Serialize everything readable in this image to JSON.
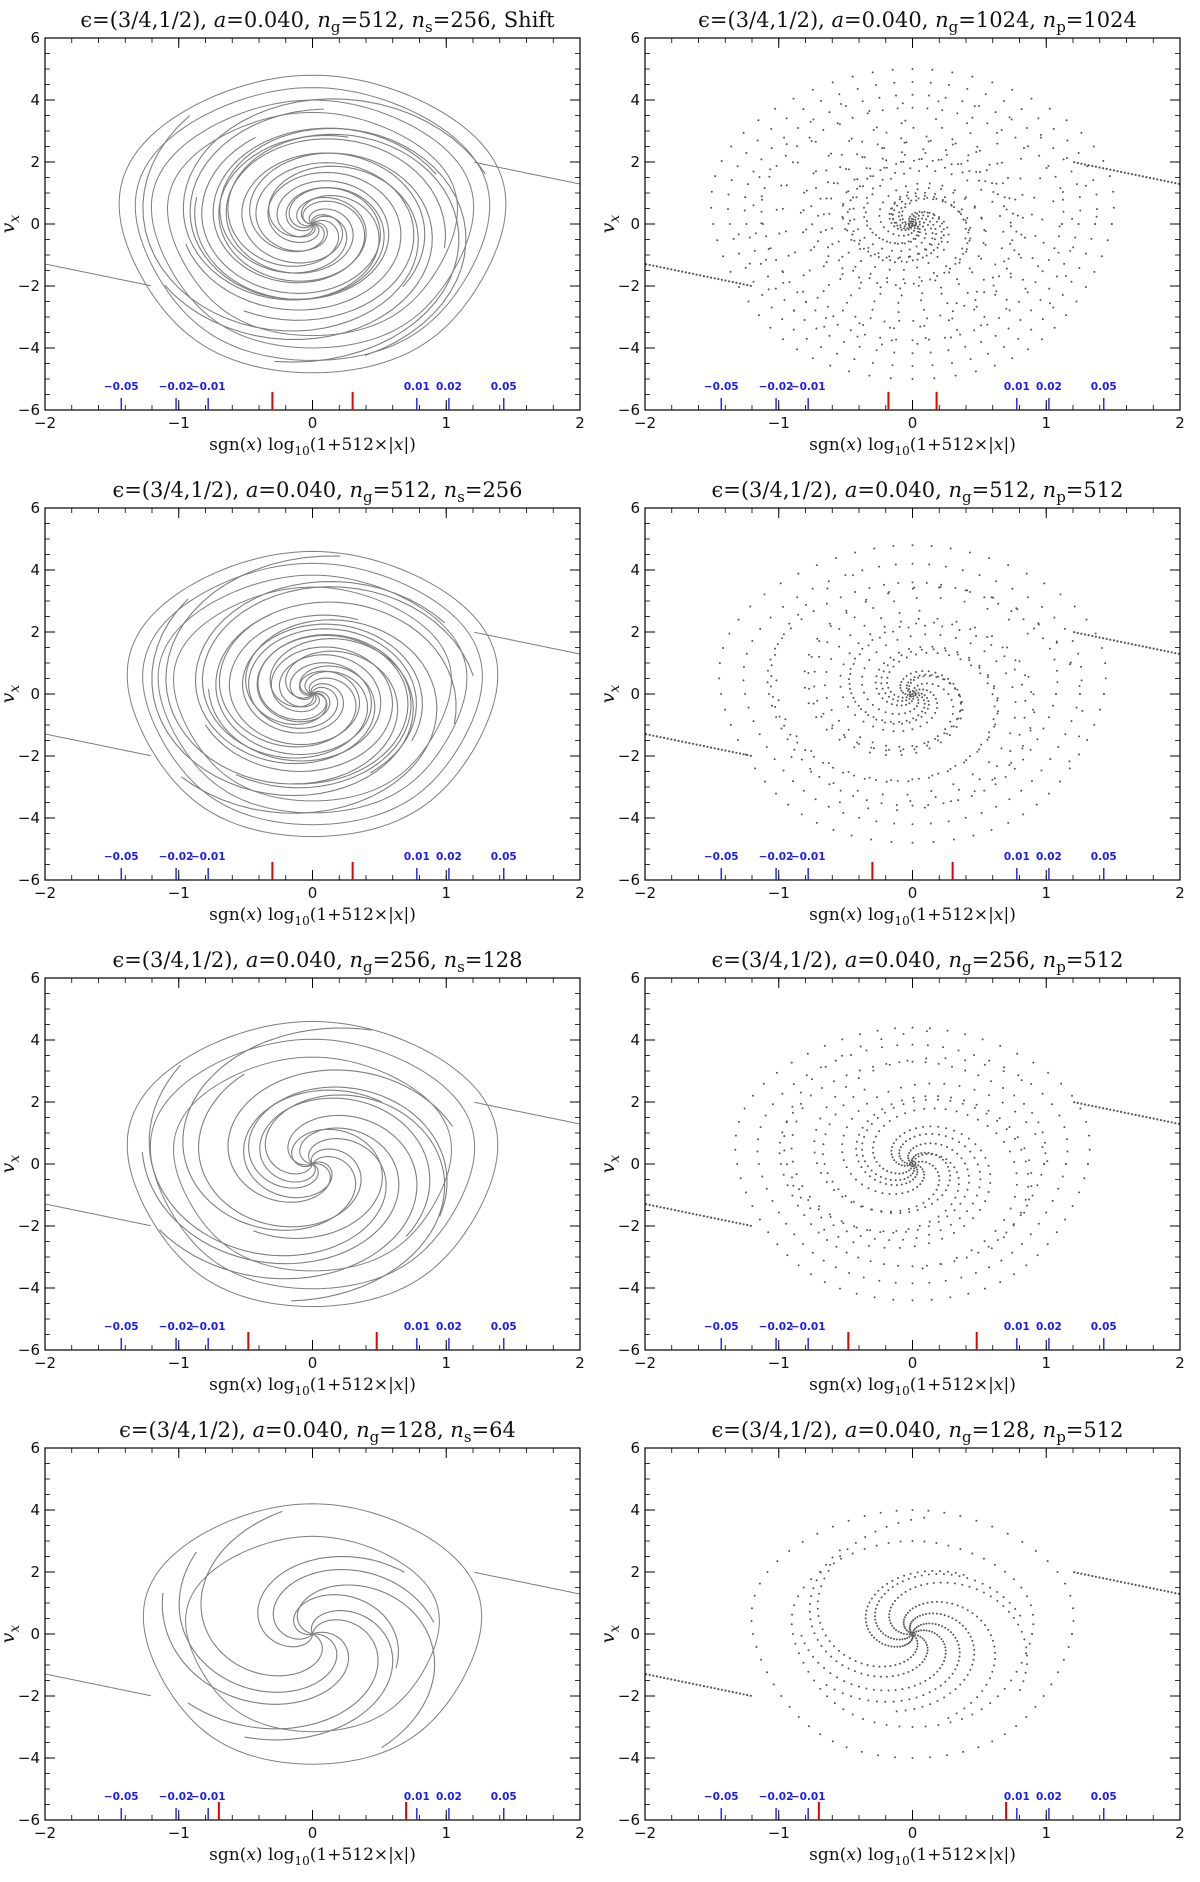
{
  "chart_data": [
    {
      "type": "line",
      "title": "ϵ=(3/4,1/2), a=0.040, n_g=512, n_s=256, Shift",
      "title_parts": {
        "prefix": "ϵ=(3/4,1/2), ",
        "a": "a",
        "a_val": "=0.040, ",
        "n": "n",
        "sub1": "g",
        "val1": "=512, ",
        "n2": "n",
        "sub2": "s",
        "val2": "=256, Shift"
      },
      "xlabel": "sgn(x) log10(1+512×|x|)",
      "ylabel": "v_x",
      "xlim": [
        -2,
        2
      ],
      "ylim": [
        -6,
        6
      ],
      "x_ticks": [
        "−2",
        "−1",
        "0",
        "1",
        "2"
      ],
      "y_ticks": [
        "−6",
        "−4",
        "−2",
        "0",
        "2",
        "4",
        "6"
      ],
      "marker_labels": [
        "−0.05",
        "−0.02",
        "−0.01",
        "0.01",
        "0.02",
        "0.05"
      ],
      "red_markers": [
        -0.3,
        0.3
      ],
      "style": "lines",
      "winding": 3.2,
      "density": 1.0,
      "rmax": 4.8
    },
    {
      "type": "scatter",
      "title": "ϵ=(3/4,1/2), a=0.040, n_g=1024, n_p=1024",
      "title_parts": {
        "prefix": "ϵ=(3/4,1/2), ",
        "a": "a",
        "a_val": "=0.040, ",
        "n": "n",
        "sub1": "g",
        "val1": "=1024, ",
        "n2": "n",
        "sub2": "p",
        "val2": "=1024"
      },
      "xlabel": "sgn(x) log10(1+512×|x|)",
      "ylabel": "v_x",
      "xlim": [
        -2,
        2
      ],
      "ylim": [
        -6,
        6
      ],
      "x_ticks": [
        "−2",
        "−1",
        "0",
        "1",
        "2"
      ],
      "y_ticks": [
        "−6",
        "−4",
        "−2",
        "0",
        "2",
        "4",
        "6"
      ],
      "marker_labels": [
        "−0.05",
        "−0.02",
        "−0.01",
        "0.01",
        "0.02",
        "0.05"
      ],
      "red_markers": [
        -0.18,
        0.18
      ],
      "style": "points",
      "winding": 3.6,
      "density": 1.0,
      "rmax": 5.0
    },
    {
      "type": "line",
      "title": "ϵ=(3/4,1/2), a=0.040, n_g=512, n_s=256",
      "title_parts": {
        "prefix": "ϵ=(3/4,1/2), ",
        "a": "a",
        "a_val": "=0.040, ",
        "n": "n",
        "sub1": "g",
        "val1": "=512, ",
        "n2": "n",
        "sub2": "s",
        "val2": "=256"
      },
      "xlabel": "sgn(x) log10(1+512×|x|)",
      "ylabel": "v_x",
      "xlim": [
        -2,
        2
      ],
      "ylim": [
        -6,
        6
      ],
      "x_ticks": [
        "−2",
        "−1",
        "0",
        "1",
        "2"
      ],
      "y_ticks": [
        "−6",
        "−4",
        "−2",
        "0",
        "2",
        "4",
        "6"
      ],
      "marker_labels": [
        "−0.05",
        "−0.02",
        "−0.01",
        "0.01",
        "0.02",
        "0.05"
      ],
      "red_markers": [
        -0.3,
        0.3
      ],
      "style": "lines",
      "winding": 3.2,
      "density": 1.0,
      "rmax": 4.6
    },
    {
      "type": "scatter",
      "title": "ϵ=(3/4,1/2), a=0.040, n_g=512, n_p=512",
      "title_parts": {
        "prefix": "ϵ=(3/4,1/2), ",
        "a": "a",
        "a_val": "=0.040, ",
        "n": "n",
        "sub1": "g",
        "val1": "=512, ",
        "n2": "n",
        "sub2": "p",
        "val2": "=512"
      },
      "xlabel": "sgn(x) log10(1+512×|x|)",
      "ylabel": "v_x",
      "xlim": [
        -2,
        2
      ],
      "ylim": [
        -6,
        6
      ],
      "x_ticks": [
        "−2",
        "−1",
        "0",
        "1",
        "2"
      ],
      "y_ticks": [
        "−6",
        "−4",
        "−2",
        "0",
        "2",
        "4",
        "6"
      ],
      "marker_labels": [
        "−0.05",
        "−0.02",
        "−0.01",
        "0.01",
        "0.02",
        "0.05"
      ],
      "red_markers": [
        -0.3,
        0.3
      ],
      "style": "points",
      "winding": 3.0,
      "density": 0.7,
      "rmax": 4.8
    },
    {
      "type": "line",
      "title": "ϵ=(3/4,1/2), a=0.040, n_g=256, n_s=128",
      "title_parts": {
        "prefix": "ϵ=(3/4,1/2), ",
        "a": "a",
        "a_val": "=0.040, ",
        "n": "n",
        "sub1": "g",
        "val1": "=256, ",
        "n2": "n",
        "sub2": "s",
        "val2": "=128"
      },
      "xlabel": "sgn(x) log10(1+512×|x|)",
      "ylabel": "v_x",
      "xlim": [
        -2,
        2
      ],
      "ylim": [
        -6,
        6
      ],
      "x_ticks": [
        "−2",
        "−1",
        "0",
        "1",
        "2"
      ],
      "y_ticks": [
        "−6",
        "−4",
        "−2",
        "0",
        "2",
        "4",
        "6"
      ],
      "marker_labels": [
        "−0.05",
        "−0.02",
        "−0.01",
        "0.01",
        "0.02",
        "0.05"
      ],
      "red_markers": [
        -0.48,
        0.48
      ],
      "style": "lines",
      "winding": 2.2,
      "density": 0.7,
      "rmax": 4.6
    },
    {
      "type": "scatter",
      "title": "ϵ=(3/4,1/2), a=0.040, n_g=256, n_p=512",
      "title_parts": {
        "prefix": "ϵ=(3/4,1/2), ",
        "a": "a",
        "a_val": "=0.040, ",
        "n": "n",
        "sub1": "g",
        "val1": "=256, ",
        "n2": "n",
        "sub2": "p",
        "val2": "=512"
      },
      "xlabel": "sgn(x) log10(1+512×|x|)",
      "ylabel": "v_x",
      "xlim": [
        -2,
        2
      ],
      "ylim": [
        -6,
        6
      ],
      "x_ticks": [
        "−2",
        "−1",
        "0",
        "1",
        "2"
      ],
      "y_ticks": [
        "−6",
        "−4",
        "−2",
        "0",
        "2",
        "4",
        "6"
      ],
      "marker_labels": [
        "−0.05",
        "−0.02",
        "−0.01",
        "0.01",
        "0.02",
        "0.05"
      ],
      "red_markers": [
        -0.48,
        0.48
      ],
      "style": "points",
      "winding": 2.2,
      "density": 0.6,
      "rmax": 4.4
    },
    {
      "type": "line",
      "title": "ϵ=(3/4,1/2), a=0.040, n_g=128, n_s=64",
      "title_parts": {
        "prefix": "ϵ=(3/4,1/2), ",
        "a": "a",
        "a_val": "=0.040, ",
        "n": "n",
        "sub1": "g",
        "val1": "=128, ",
        "n2": "n",
        "sub2": "s",
        "val2": "=64"
      },
      "xlabel": "sgn(x) log10(1+512×|x|)",
      "ylabel": "v_x",
      "xlim": [
        -2,
        2
      ],
      "ylim": [
        -6,
        6
      ],
      "x_ticks": [
        "−2",
        "−1",
        "0",
        "1",
        "2"
      ],
      "y_ticks": [
        "−6",
        "−4",
        "−2",
        "0",
        "2",
        "4",
        "6"
      ],
      "marker_labels": [
        "−0.05",
        "−0.02",
        "−0.01",
        "0.01",
        "0.02",
        "0.05"
      ],
      "red_markers": [
        -0.7,
        0.7
      ],
      "style": "lines",
      "winding": 1.4,
      "density": 0.45,
      "rmax": 4.2
    },
    {
      "type": "scatter",
      "title": "ϵ=(3/4,1/2), a=0.040, n_g=128, n_p=512",
      "title_parts": {
        "prefix": "ϵ=(3/4,1/2), ",
        "a": "a",
        "a_val": "=0.040, ",
        "n": "n",
        "sub1": "g",
        "val1": "=128, ",
        "n2": "n",
        "sub2": "p",
        "val2": "=512"
      },
      "xlabel": "sgn(x) log10(1+512×|x|)",
      "ylabel": "v_x",
      "xlim": [
        -2,
        2
      ],
      "ylim": [
        -6,
        6
      ],
      "x_ticks": [
        "−2",
        "−1",
        "0",
        "1",
        "2"
      ],
      "y_ticks": [
        "−6",
        "−4",
        "−2",
        "0",
        "2",
        "4",
        "6"
      ],
      "marker_labels": [
        "−0.05",
        "−0.02",
        "−0.01",
        "0.01",
        "0.02",
        "0.05"
      ],
      "red_markers": [
        -0.7,
        0.7
      ],
      "style": "points",
      "winding": 1.4,
      "density": 0.45,
      "rmax": 4.0
    }
  ],
  "colors": {
    "curve": "#7f7f7f",
    "points": "#555555",
    "marker_blue": "#1a1aff",
    "marker_red": "#e60000",
    "axis": "#000000"
  }
}
